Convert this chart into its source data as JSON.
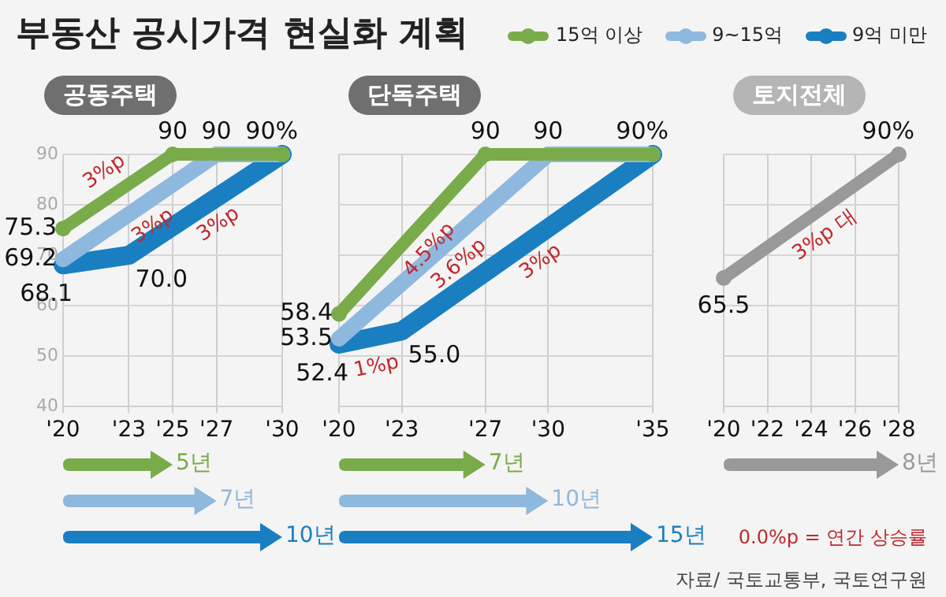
{
  "chart_data": [
    {
      "type": "line",
      "title": "부동산 공시가격 현실화 계획",
      "subtitle": "공동주택",
      "legend": "top right",
      "grid": true,
      "marker": "circle",
      "line_style": "solid",
      "tick_labels": "xy",
      "xlim": [
        2020,
        2030
      ],
      "xticks": [
        {
          "value": 2020,
          "label": "'20"
        },
        {
          "value": 2023,
          "label": "'23"
        },
        {
          "value": 2025,
          "label": "'25"
        },
        {
          "value": 2027,
          "label": "'27"
        },
        {
          "value": 2030,
          "label": "'30"
        }
      ],
      "ylim": [
        40,
        90
      ],
      "yticks": [
        40,
        50,
        60,
        70,
        80,
        90
      ],
      "series": [
        {
          "name": "15억 이상",
          "color": "#7aab4a",
          "x": [
            2020,
            2025,
            2030
          ],
          "values": [
            75.3,
            90,
            90
          ],
          "value_labels": [
            "75.3",
            "90",
            null
          ]
        },
        {
          "name": "9~15억",
          "color": "#8fb8de",
          "x": [
            2020,
            2027,
            2030
          ],
          "values": [
            69.2,
            90,
            90
          ],
          "value_labels": [
            "69.2",
            "90",
            null
          ]
        },
        {
          "name": "9억 미만",
          "color": "#1a7fc0",
          "x": [
            2020,
            2023,
            2030
          ],
          "values": [
            68.1,
            70.0,
            90
          ],
          "value_labels": [
            "68.1",
            "70.0",
            "90%"
          ]
        }
      ],
      "annotations": [
        {
          "text": "3%p",
          "x": 2022.5,
          "y": 82.65
        },
        {
          "text": "3%p",
          "x": 2023.5,
          "y": 79.6
        },
        {
          "text": "3%p",
          "x": 2026.5,
          "y": 80
        },
        "5년",
        "7년",
        "10년"
      ]
    },
    {
      "type": "line",
      "subtitle": "단독주택",
      "grid": true,
      "marker": "circle",
      "line_style": "solid",
      "tick_labels": "x",
      "xlim": [
        2020,
        2035
      ],
      "xticks": [
        {
          "value": 2020,
          "label": "'20"
        },
        {
          "value": 2023,
          "label": "'23"
        },
        {
          "value": 2027,
          "label": "'27"
        },
        {
          "value": 2030,
          "label": "'30"
        },
        {
          "value": 2035,
          "label": "'35"
        }
      ],
      "ylim": [
        40,
        90
      ],
      "yticks": [
        40,
        50,
        60,
        70,
        80,
        90
      ],
      "series": [
        {
          "color": "#7aab4a",
          "x": [
            2020,
            2027,
            2035
          ],
          "values": [
            58.4,
            90,
            90
          ],
          "value_labels": [
            "58.4",
            "90",
            null
          ]
        },
        {
          "color": "#8fb8de",
          "x": [
            2020,
            2030,
            2035
          ],
          "values": [
            53.5,
            90,
            90
          ],
          "value_labels": [
            "53.5",
            "90",
            null
          ]
        },
        {
          "color": "#1a7fc0",
          "x": [
            2020,
            2023,
            2035
          ],
          "values": [
            52.4,
            55.0,
            90
          ],
          "value_labels": [
            "52.4",
            "55.0",
            "90%"
          ]
        }
      ],
      "annotations": [
        {
          "text": "4.5%p",
          "x": 2023.5,
          "y": 74.2
        },
        {
          "text": "3.6%p",
          "x": 2025,
          "y": 71.75
        },
        {
          "text": "3%p",
          "x": 2029,
          "y": 72.5
        },
        {
          "text": "1%p",
          "x": 2021.5,
          "y": 53.7
        },
        "7년",
        "10년",
        "15년"
      ]
    },
    {
      "type": "line",
      "subtitle": "토지전체",
      "grid": true,
      "marker": "circle",
      "line_style": "solid",
      "tick_labels": "x",
      "xlim": [
        2020,
        2028
      ],
      "xticks": [
        {
          "value": 2020,
          "label": "'20"
        },
        {
          "value": 2022,
          "label": "'22"
        },
        {
          "value": 2024,
          "label": "'24"
        },
        {
          "value": 2026,
          "label": "'26"
        },
        {
          "value": 2028,
          "label": "'28"
        }
      ],
      "ylim": [
        40,
        90
      ],
      "yticks": [
        40,
        50,
        60,
        70,
        80,
        90
      ],
      "series": [
        {
          "color": "#999999",
          "x": [
            2020,
            2028
          ],
          "values": [
            65.5,
            90
          ],
          "value_labels": [
            "65.5",
            "90%"
          ]
        }
      ],
      "annotations": [
        {
          "text": "3%p 대",
          "x": 2024,
          "y": 77.75
        },
        "8년",
        "0.0%p = 연간 상승률",
        "자료/ 국토교통부, 국토연구원"
      ]
    }
  ]
}
